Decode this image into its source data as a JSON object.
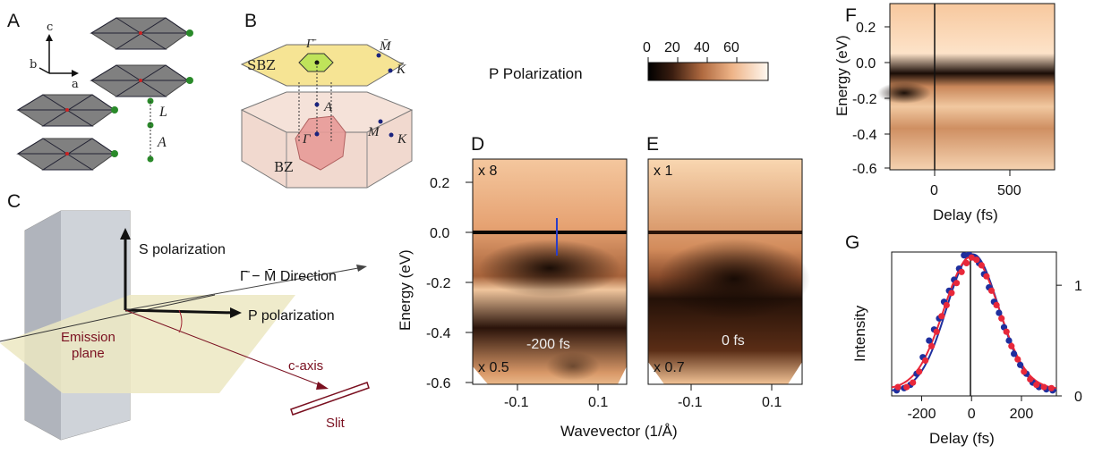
{
  "panels": {
    "a": "A",
    "b": "B",
    "c": "C",
    "d": "D",
    "e": "E",
    "f": "F",
    "g": "G"
  },
  "panel_a": {
    "axis_c": "c",
    "axis_b": "b",
    "axis_a": "a",
    "label_L": "L",
    "label_A": "A"
  },
  "panel_b": {
    "sbz": "SBZ",
    "bz": "BZ",
    "gamma_bar": "Γ̄",
    "m_bar": "M̄",
    "k_bar": "K̄",
    "gamma": "Γ",
    "a_point": "A",
    "m_point": "M",
    "k_point": "K"
  },
  "panel_c": {
    "s_pol": "S polarization",
    "direction": "Γ̄ − M̄  Direction",
    "p_pol": "P polarization",
    "emission_1": "Emission",
    "emission_2": "plane",
    "c_axis": "c-axis",
    "slit": "Slit"
  },
  "colorbar": {
    "title": "P Polarization",
    "ticks": [
      "0",
      "20",
      "40",
      "60"
    ]
  },
  "panel_d": {
    "mult_top": "x 8",
    "mult_bot": "x 0.5",
    "time": "-200 fs"
  },
  "panel_e": {
    "mult_top": "x 1",
    "mult_bot": "x 0.7",
    "time": "0 fs"
  },
  "axes_de": {
    "ylabel": "Energy (eV)",
    "xlabel": "Wavevector (1/Å)",
    "yticks": [
      "0.2",
      "0.0",
      "-0.2",
      "-0.4",
      "-0.6"
    ],
    "xticks_d": [
      "-0.1",
      "0.1"
    ],
    "xticks_e": [
      "-0.1",
      "0.1"
    ]
  },
  "axes_f": {
    "ylabel": "Energy (eV)",
    "xlabel": "Delay (fs)",
    "yticks": [
      "0.2",
      "0.0",
      "-0.2",
      "-0.4",
      "-0.6"
    ],
    "xticks": [
      "0",
      "500"
    ]
  },
  "chart_data": {
    "type": "scatter",
    "xlabel": "Delay (fs)",
    "ylabel": "Intensity",
    "xlim": [
      -320,
      340
    ],
    "ylim": [
      0,
      1.3
    ],
    "xticks": [
      "-200",
      "0",
      "200"
    ],
    "yticks": [
      "0",
      "1"
    ],
    "series": [
      {
        "color": "#1f2f9e",
        "x": [
          -300,
          -270,
          -245,
          -220,
          -195,
          -170,
          -150,
          -130,
          -110,
          -90,
          -70,
          -50,
          -30,
          -10,
          10,
          30,
          50,
          70,
          90,
          110,
          130,
          150,
          170,
          195,
          220,
          245,
          270,
          300,
          325
        ],
        "y": [
          0.05,
          0.07,
          0.1,
          0.2,
          0.35,
          0.5,
          0.6,
          0.7,
          0.85,
          0.95,
          1.05,
          1.15,
          1.27,
          1.28,
          1.25,
          1.2,
          1.1,
          0.98,
          0.85,
          0.75,
          0.62,
          0.5,
          0.38,
          0.28,
          0.2,
          0.12,
          0.08,
          0.06,
          0.05
        ]
      },
      {
        "color": "#e8283a",
        "x": [
          -295,
          -260,
          -235,
          -210,
          -185,
          -160,
          -140,
          -120,
          -100,
          -80,
          -60,
          -40,
          -20,
          0,
          20,
          40,
          60,
          80,
          100,
          120,
          140,
          160,
          185,
          210,
          235,
          260,
          290,
          320
        ],
        "y": [
          0.08,
          0.08,
          0.12,
          0.22,
          0.32,
          0.45,
          0.58,
          0.72,
          0.82,
          0.93,
          1.02,
          1.12,
          1.2,
          1.25,
          1.23,
          1.18,
          1.08,
          0.95,
          0.82,
          0.7,
          0.58,
          0.45,
          0.33,
          0.22,
          0.15,
          0.1,
          0.08,
          0.07
        ]
      }
    ],
    "fits": [
      {
        "color": "#1f2f9e",
        "amplitude": 1.24,
        "center": 5,
        "sigma": 105,
        "offset": 0.04
      },
      {
        "color": "#e8283a",
        "amplitude": 1.2,
        "center": 0,
        "sigma": 110,
        "offset": 0.06
      }
    ]
  }
}
